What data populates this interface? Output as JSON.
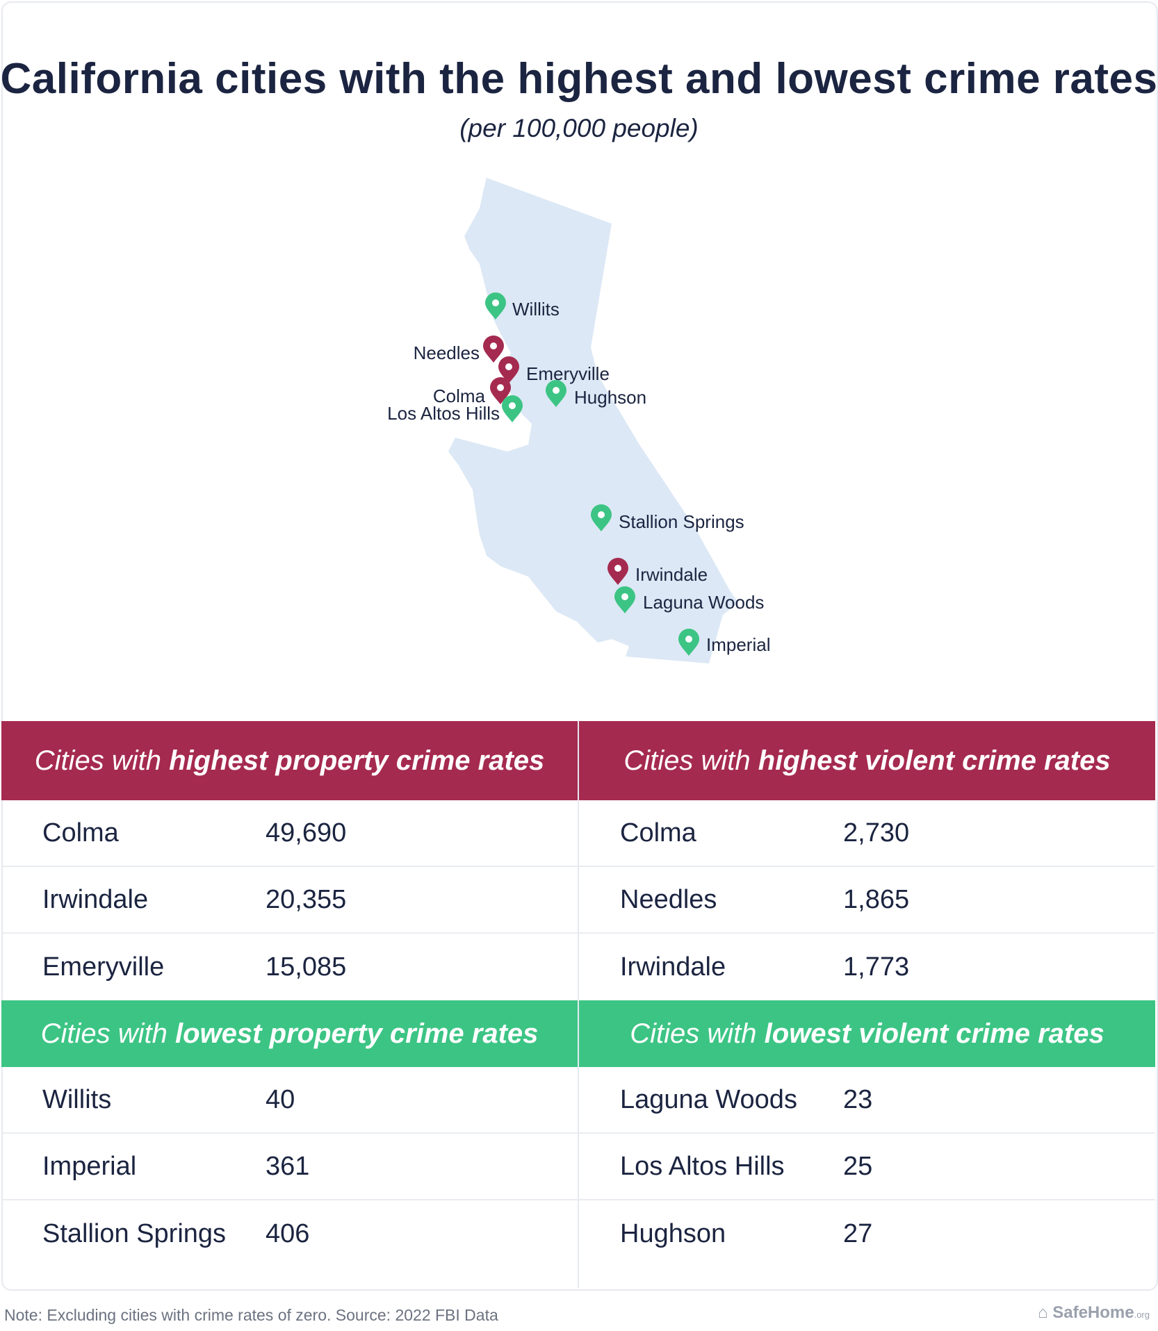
{
  "title": "California cities with the highest and lowest crime rates",
  "subtitle": "(per 100,000 people)",
  "colors": {
    "high": "#a52a4f",
    "low": "#3cc484",
    "map_fill": "#dce8f5",
    "text": "#1b2440"
  },
  "map": {
    "pins": [
      {
        "name": "Willits",
        "group": "low"
      },
      {
        "name": "Needles",
        "group": "high"
      },
      {
        "name": "Emeryville",
        "group": "high"
      },
      {
        "name": "Colma",
        "group": "high"
      },
      {
        "name": "Hughson",
        "group": "low"
      },
      {
        "name": "Los Altos Hills",
        "group": "low"
      },
      {
        "name": "Stallion Springs",
        "group": "low"
      },
      {
        "name": "Irwindale",
        "group": "high"
      },
      {
        "name": "Laguna Woods",
        "group": "low"
      },
      {
        "name": "Imperial",
        "group": "low"
      }
    ]
  },
  "tables": {
    "high_property": {
      "title_pre": "Cities with ",
      "title_em": "highest property crime rates",
      "rows": [
        {
          "city": "Colma",
          "value": "49,690"
        },
        {
          "city": "Irwindale",
          "value": "20,355"
        },
        {
          "city": "Emeryville",
          "value": "15,085"
        }
      ]
    },
    "high_violent": {
      "title_pre": "Cities with ",
      "title_em": "highest violent crime rates",
      "rows": [
        {
          "city": "Colma",
          "value": "2,730"
        },
        {
          "city": "Needles",
          "value": "1,865"
        },
        {
          "city": "Irwindale",
          "value": "1,773"
        }
      ]
    },
    "low_property": {
      "title_pre": "Cities with ",
      "title_em": "lowest property crime rates",
      "rows": [
        {
          "city": "Willits",
          "value": "40"
        },
        {
          "city": "Imperial",
          "value": "361"
        },
        {
          "city": "Stallion Springs",
          "value": "406"
        }
      ]
    },
    "low_violent": {
      "title_pre": "Cities with ",
      "title_em": "lowest violent crime rates",
      "rows": [
        {
          "city": "Laguna Woods",
          "value": "23"
        },
        {
          "city": "Los Altos Hills",
          "value": "25"
        },
        {
          "city": "Hughson",
          "value": "27"
        }
      ]
    }
  },
  "note": "Note: Excluding cities with crime rates of zero. Source: 2022 FBI Data",
  "brand": {
    "name": "SafeHome",
    "suffix": ".org"
  }
}
